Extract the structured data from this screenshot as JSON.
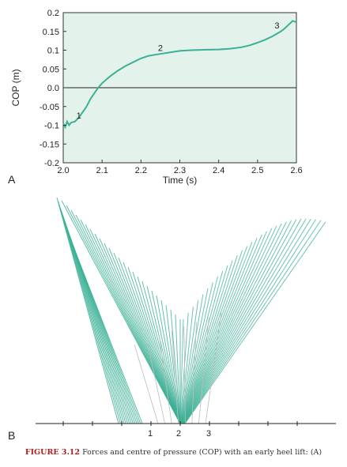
{
  "chart_data": [
    {
      "type": "line",
      "panel_label": "A",
      "xlabel": "Time (s)",
      "ylabel": "COP (m)",
      "xlim": [
        2.0,
        2.6
      ],
      "ylim": [
        -0.2,
        0.2
      ],
      "xticks": [
        "2.0",
        "2.1",
        "2.2",
        "2.3",
        "2.4",
        "2.5",
        "2.6"
      ],
      "yticks": [
        "0.2",
        "0.15",
        "0.1",
        "0.05",
        "0.0",
        "-0.05",
        "-0.1",
        "-0.15",
        "-0.2"
      ],
      "background": "#e4f2ec",
      "series_color": "#3bb095",
      "series": [
        {
          "x": [
            2.0,
            2.005,
            2.01,
            2.015,
            2.02,
            2.03,
            2.04,
            2.05,
            2.06,
            2.07,
            2.08,
            2.09,
            2.1,
            2.12,
            2.14,
            2.16,
            2.18,
            2.2,
            2.22,
            2.25,
            2.28,
            2.3,
            2.33,
            2.36,
            2.4,
            2.43,
            2.46,
            2.48,
            2.5,
            2.52,
            2.54,
            2.56,
            2.57,
            2.58,
            2.59,
            2.6
          ],
          "y": [
            -0.095,
            -0.105,
            -0.09,
            -0.1,
            -0.093,
            -0.09,
            -0.08,
            -0.065,
            -0.05,
            -0.03,
            -0.015,
            0.0,
            0.012,
            0.03,
            0.045,
            0.058,
            0.068,
            0.078,
            0.085,
            0.09,
            0.095,
            0.098,
            0.1,
            0.101,
            0.102,
            0.104,
            0.108,
            0.113,
            0.12,
            0.128,
            0.138,
            0.15,
            0.158,
            0.168,
            0.178,
            0.175
          ]
        }
      ],
      "annotations": [
        {
          "text": "1",
          "x": 2.04,
          "y": -0.09
        },
        {
          "text": "2",
          "x": 2.25,
          "y": 0.09
        },
        {
          "text": "3",
          "x": 2.55,
          "y": 0.15
        }
      ]
    },
    {
      "type": "other",
      "panel_label": "B",
      "annotations": [
        "1",
        "2",
        "3"
      ],
      "line_color": "#3bb095"
    }
  ],
  "caption": {
    "figure_number": "FIGURE 3.12",
    "text": "Forces and centre of pressure (COP) with an early heel lift: (A)"
  }
}
